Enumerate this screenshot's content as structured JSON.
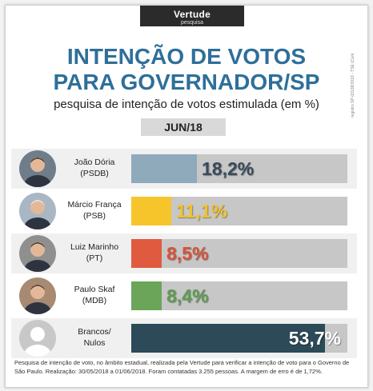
{
  "brand": {
    "name": "Vertude",
    "sub": "pesquisa"
  },
  "side_note": "registro SP-03138/2018 - TSE (Contratado pela PNBXPI)",
  "header": {
    "title_line1": "INTENÇÃO DE VOTOS",
    "title_line2": "PARA GOVERNADOR/SP",
    "subtitle": "pesquisa de intenção de votos estimulada (em %)",
    "period": "JUN/18"
  },
  "chart_data": {
    "type": "bar",
    "orientation": "horizontal",
    "title": "INTENÇÃO DE VOTOS PARA GOVERNADOR/SP",
    "subtitle": "pesquisa de intenção de votos estimulada (em %)",
    "period": "JUN/18",
    "categories": [
      "João Dória (PSDB)",
      "Márcio França (PSB)",
      "Luiz Marinho (PT)",
      "Paulo Skaf (MDB)",
      "Brancos/ Nulos"
    ],
    "values": [
      18.2,
      11.1,
      8.5,
      8.4,
      53.7
    ],
    "xlim": [
      0,
      60
    ],
    "unit": "%"
  },
  "rows": [
    {
      "line1": "João Dória",
      "line2": "(PSDB)",
      "value": 18.2,
      "value_label": "18,2%",
      "color": "#8eaabb",
      "label_color": "#3a4a5a",
      "avatar": "jd-photo"
    },
    {
      "line1": "Márcio França",
      "line2": "(PSB)",
      "value": 11.1,
      "value_label": "11,1%",
      "color": "#f6c52b",
      "label_color": "#f2c22a",
      "avatar": "mf-photo"
    },
    {
      "line1": "Luiz Marinho",
      "line2": "(PT)",
      "value": 8.5,
      "value_label": "8,5%",
      "color": "#e05a3f",
      "label_color": "#d9513a",
      "avatar": "lm-photo"
    },
    {
      "line1": "Paulo Skaf",
      "line2": "(MDB)",
      "value": 8.4,
      "value_label": "8,4%",
      "color": "#6aa55a",
      "label_color": "#5f9c52",
      "avatar": "ps-photo"
    },
    {
      "line1": "Brancos/",
      "line2": "Nulos",
      "value": 53.7,
      "value_label": "53,7%",
      "color": "#2c4a58",
      "label_color": "#ffffff",
      "avatar": "generic-person"
    }
  ],
  "footnote": "Pesquisa de intenção de voto, no âmbito estadual, realizada pela Vertude para verificar a intenção de voto para o Governo de São Paulo. Realização: 30/05/2018 a 01/06/2018. Foram contatadas 3.255 pessoas. A margem de erro é de 1,72%."
}
